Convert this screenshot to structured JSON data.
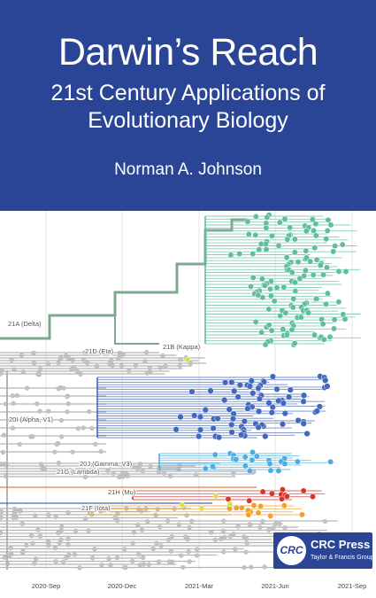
{
  "cover": {
    "title": "Darwin’s Reach",
    "subtitle_line1": "21st Century Applications of",
    "subtitle_line2": "Evolutionary Biology",
    "author": "Norman A. Johnson"
  },
  "publisher": {
    "logo_text": "CRC",
    "name": "CRC Press",
    "group": "Taylor & Francis Group"
  },
  "chart_data": {
    "type": "scatter",
    "title": "",
    "xlabel": "",
    "ylabel": "",
    "x_ticks": [
      "2020-Sep",
      "2020-Dec",
      "2021-Mar",
      "2021-Jun",
      "2021-Sep"
    ],
    "clades": [
      {
        "label": "21A (Delta)",
        "color": "#5fbf9a"
      },
      {
        "label": "21B (Kappa)",
        "color": "#b0b0b0"
      },
      {
        "label": "21D (Eta)",
        "color": "#b0b0b0"
      },
      {
        "label": "20I (Alpha, V1)",
        "color": "#4468bb"
      },
      {
        "label": "20J (Gamma, V3)",
        "color": "#4aaee0"
      },
      {
        "label": "21G (Lambda)",
        "color": "#b0b0b0"
      },
      {
        "label": "21H (Mu)",
        "color": "#d8342a"
      },
      {
        "label": "21F (Iota)",
        "color": "#f0a22c"
      }
    ],
    "colors": {
      "banner": "#2b4596",
      "background_branches": "#b4b4b4",
      "delta": "#5fbf9a",
      "alpha": "#4468bb",
      "gamma": "#4aaee0",
      "mu": "#d8342a",
      "iota": "#f0a22c"
    }
  }
}
